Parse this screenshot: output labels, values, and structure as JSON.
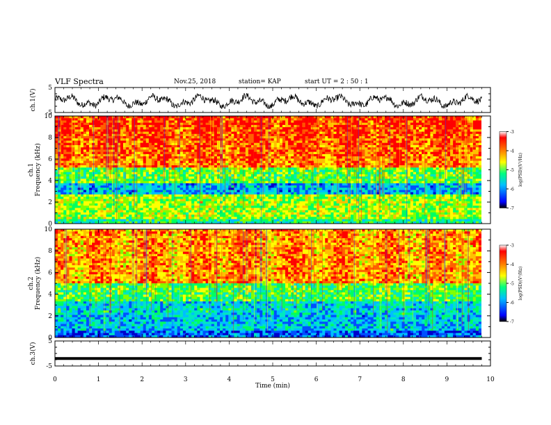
{
  "header": {
    "title": "VLF Spectra",
    "date": "Nov.25, 2018",
    "station": "station= KAP",
    "start_time": "start  UT =  2 : 50 : 1"
  },
  "colors": {
    "colorbar_stops": [
      "#000000",
      "#0000ff",
      "#00bfff",
      "#00ff80",
      "#ffff00",
      "#ff8000",
      "#ff0000",
      "#ffffff"
    ]
  },
  "chart_data": [
    {
      "type": "line",
      "ylabel": "ch.1(V)",
      "ylim": [
        -5,
        5
      ],
      "yticks": [
        "5",
        "-5"
      ],
      "xlim": [
        0,
        10
      ],
      "description_values": "noisy waveform oscillating roughly between -3 and 2 V",
      "approx_range": [
        -3,
        2
      ]
    },
    {
      "type": "heatmap",
      "ylabel_line1": "ch.1",
      "ylabel_line2": "Frequency  (kHz)",
      "ylim": [
        0,
        10
      ],
      "yticks": [
        "0",
        "2",
        "4",
        "6",
        "8",
        "10"
      ],
      "xlim": [
        0,
        10
      ],
      "colorbar": {
        "label": "log(PSD)(V²/Hz)",
        "range": [
          -7,
          -3
        ],
        "ticks": [
          "-3",
          "-4",
          "-5",
          "-6",
          "-7"
        ]
      }
    },
    {
      "type": "heatmap",
      "ylabel_line1": "ch.2",
      "ylabel_line2": "Frequency  (kHz)",
      "ylim": [
        0,
        10
      ],
      "yticks": [
        "0",
        "2",
        "4",
        "6",
        "8",
        "10"
      ],
      "xlim": [
        0,
        10
      ],
      "colorbar": {
        "label": "log(PSD)(V²/Hz)",
        "range": [
          -7,
          -3
        ],
        "ticks": [
          "-3",
          "-4",
          "-5",
          "-6",
          "-7"
        ]
      }
    },
    {
      "type": "line",
      "ylabel": "ch.3(V)",
      "ylim": [
        -5,
        5
      ],
      "yticks": [
        "5",
        "-5"
      ],
      "xlim": [
        0,
        10
      ],
      "x": [
        0,
        9.8
      ],
      "y": [
        -2,
        -2
      ]
    }
  ],
  "xaxis": {
    "label": "Time  (min)",
    "ticks": [
      "0",
      "1",
      "2",
      "3",
      "4",
      "5",
      "6",
      "7",
      "8",
      "9",
      "10"
    ]
  }
}
